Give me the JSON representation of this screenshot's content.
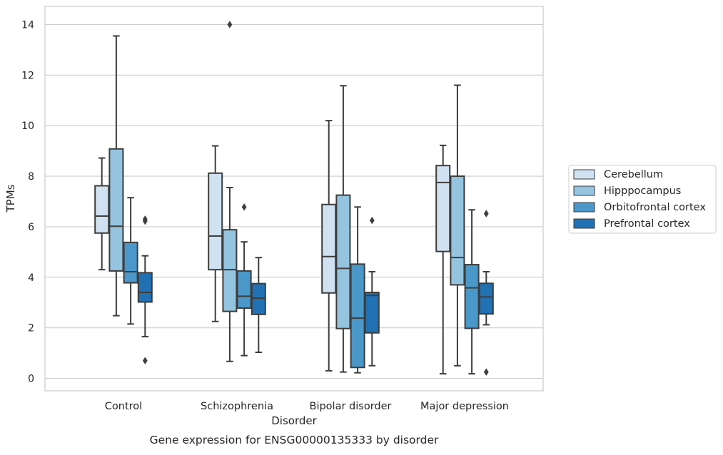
{
  "chart_data": {
    "type": "box",
    "title": "Gene expression for ENSG00000135333 by disorder",
    "xlabel": "Disorder",
    "ylabel": "TPMs",
    "ylim": [
      -0.45,
      14.7
    ],
    "yticks": [
      0,
      2,
      4,
      6,
      8,
      10,
      12,
      14
    ],
    "ytick_labels": [
      "0",
      "2",
      "4",
      "6",
      "8",
      "10",
      "12",
      "14"
    ],
    "grid": true,
    "legend_position": "outside-right",
    "categories": [
      "Control",
      "Schizophrenia",
      "Bipolar disorder",
      "Major depression"
    ],
    "series": [
      {
        "name": "Cerebellum",
        "color": "#d0e1f2",
        "boxes": [
          {
            "whisker_low": 4.3,
            "q1": 5.75,
            "median": 6.42,
            "q3": 7.62,
            "whisker_high": 8.72,
            "outliers": []
          },
          {
            "whisker_low": 2.25,
            "q1": 4.3,
            "median": 5.63,
            "q3": 8.12,
            "whisker_high": 9.2,
            "outliers": []
          },
          {
            "whisker_low": 0.3,
            "q1": 3.38,
            "median": 4.82,
            "q3": 6.88,
            "whisker_high": 10.2,
            "outliers": []
          },
          {
            "whisker_low": 0.18,
            "q1": 5.02,
            "median": 7.75,
            "q3": 8.42,
            "whisker_high": 9.22,
            "outliers": []
          }
        ]
      },
      {
        "name": "Hipppocampus",
        "color": "#94c4df",
        "boxes": [
          {
            "whisker_low": 2.48,
            "q1": 4.25,
            "median": 6.02,
            "q3": 9.08,
            "whisker_high": 13.55,
            "outliers": []
          },
          {
            "whisker_low": 0.67,
            "q1": 2.65,
            "median": 4.3,
            "q3": 5.88,
            "whisker_high": 7.55,
            "outliers": [
              14.0
            ]
          },
          {
            "whisker_low": 0.25,
            "q1": 1.97,
            "median": 4.35,
            "q3": 7.25,
            "whisker_high": 11.58,
            "outliers": []
          },
          {
            "whisker_low": 0.5,
            "q1": 3.7,
            "median": 4.78,
            "q3": 8.0,
            "whisker_high": 11.6,
            "outliers": []
          }
        ]
      },
      {
        "name": "Orbitofrontal cortex",
        "color": "#4a98c9",
        "boxes": [
          {
            "whisker_low": 2.15,
            "q1": 3.78,
            "median": 4.22,
            "q3": 5.38,
            "whisker_high": 7.15,
            "outliers": []
          },
          {
            "whisker_low": 0.9,
            "q1": 2.78,
            "median": 3.25,
            "q3": 4.25,
            "whisker_high": 5.4,
            "outliers": [
              6.78
            ]
          },
          {
            "whisker_low": 0.22,
            "q1": 0.43,
            "median": 2.38,
            "q3": 4.52,
            "whisker_high": 6.78,
            "outliers": []
          },
          {
            "whisker_low": 0.18,
            "q1": 1.98,
            "median": 3.58,
            "q3": 4.5,
            "whisker_high": 6.67,
            "outliers": []
          }
        ]
      },
      {
        "name": "Prefrontal cortex",
        "color": "#2171b5",
        "boxes": [
          {
            "whisker_low": 1.65,
            "q1": 3.02,
            "median": 3.4,
            "q3": 4.18,
            "whisker_high": 4.85,
            "outliers": [
              0.7,
              6.22,
              6.3
            ]
          },
          {
            "whisker_low": 1.03,
            "q1": 2.53,
            "median": 3.17,
            "q3": 3.75,
            "whisker_high": 4.78,
            "outliers": []
          },
          {
            "whisker_low": 0.5,
            "q1": 1.8,
            "median": 3.28,
            "q3": 3.4,
            "whisker_high": 4.22,
            "outliers": [
              6.25
            ]
          },
          {
            "whisker_low": 2.12,
            "q1": 2.55,
            "median": 3.22,
            "q3": 3.76,
            "whisker_high": 4.22,
            "outliers": [
              0.25,
              6.52
            ]
          }
        ]
      }
    ]
  }
}
